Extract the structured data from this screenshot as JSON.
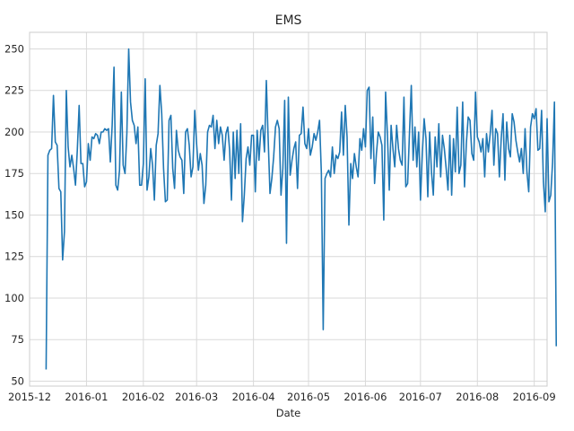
{
  "chart_data": {
    "type": "line",
    "title": "EMS",
    "xlabel": "Date",
    "ylabel": "",
    "grid": true,
    "x_ticks": [
      "2015-12",
      "2016-01",
      "2016-02",
      "2016-03",
      "2016-04",
      "2016-05",
      "2016-06",
      "2016-07",
      "2016-08",
      "2016-09"
    ],
    "y_ticks": [
      50,
      75,
      100,
      125,
      150,
      175,
      200,
      225,
      250
    ],
    "xlim": [
      "2015-12-01",
      "2016-09-08"
    ],
    "ylim": [
      47,
      260
    ],
    "series": [
      {
        "color": "#1f77b4",
        "x_start": "2015-12-10",
        "x_step_days": 1,
        "values": [
          57,
          186,
          189,
          190,
          222,
          194,
          192,
          166,
          164,
          123,
          140,
          225,
          191,
          179,
          186,
          178,
          168,
          189,
          216,
          181,
          181,
          167,
          170,
          193,
          183,
          197,
          196,
          199,
          198,
          193,
          200,
          200,
          202,
          201,
          202,
          182,
          204,
          239,
          168,
          165,
          177,
          224,
          180,
          175,
          199,
          250,
          218,
          207,
          204,
          193,
          203,
          168,
          168,
          181,
          232,
          165,
          173,
          190,
          180,
          159,
          192,
          199,
          228,
          211,
          178,
          158,
          159,
          207,
          210,
          178,
          166,
          201,
          189,
          185,
          183,
          163,
          200,
          202,
          192,
          173,
          179,
          213,
          193,
          177,
          187,
          180,
          157,
          168,
          200,
          204,
          203,
          210,
          190,
          207,
          193,
          203,
          198,
          183,
          199,
          203,
          189,
          159,
          200,
          172,
          201,
          175,
          205,
          146,
          162,
          184,
          191,
          180,
          198,
          198,
          164,
          201,
          183,
          201,
          204,
          188,
          231,
          196,
          163,
          172,
          185,
          203,
          207,
          202,
          162,
          178,
          219,
          133,
          221,
          174,
          183,
          190,
          194,
          166,
          198,
          199,
          215,
          193,
          190,
          202,
          186,
          191,
          199,
          195,
          200,
          207,
          175,
          81,
          172,
          175,
          177,
          173,
          191,
          175,
          186,
          184,
          188,
          212,
          186,
          216,
          197,
          144,
          181,
          172,
          187,
          179,
          173,
          196,
          189,
          202,
          191,
          225,
          227,
          184,
          209,
          169,
          187,
          200,
          197,
          192,
          147,
          224,
          198,
          165,
          204,
          190,
          179,
          204,
          190,
          183,
          180,
          221,
          167,
          169,
          199,
          228,
          183,
          203,
          179,
          200,
          159,
          187,
          208,
          196,
          161,
          200,
          176,
          162,
          197,
          179,
          205,
          173,
          198,
          190,
          178,
          165,
          198,
          162,
          196,
          176,
          215,
          175,
          180,
          218,
          167,
          193,
          209,
          207,
          187,
          183,
          224,
          197,
          194,
          188,
          196,
          173,
          199,
          188,
          199,
          213,
          180,
          202,
          199,
          173,
          196,
          211,
          171,
          206,
          190,
          185,
          211,
          206,
          195,
          188,
          182,
          190,
          175,
          202,
          176,
          164,
          203,
          211,
          208,
          214,
          189,
          190,
          213,
          170,
          152,
          208,
          158,
          162,
          182,
          218,
          71
        ]
      }
    ]
  }
}
